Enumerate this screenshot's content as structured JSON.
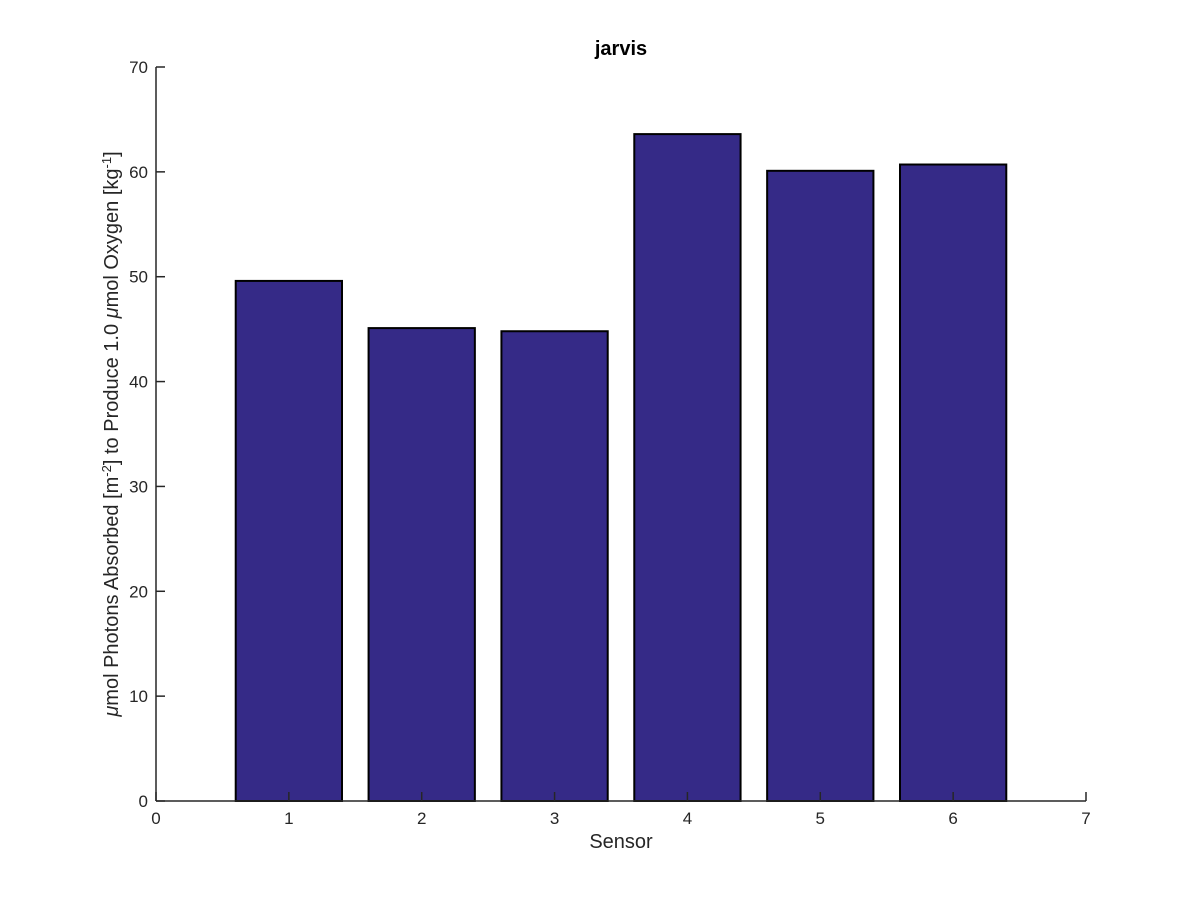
{
  "chart_data": {
    "type": "bar",
    "title": "jarvis",
    "xlabel": "Sensor",
    "ylabel": {
      "mu1": "μ",
      "part1": "mol Photons Absorbed [m",
      "sup1": "-2",
      "part2": "] to Produce 1.0 ",
      "mu2": "μ",
      "part3": "mol Oxygen [kg",
      "sup2": "-1",
      "part4": "]"
    },
    "x": [
      1,
      2,
      3,
      4,
      5,
      6
    ],
    "values": [
      49.6,
      45.1,
      44.8,
      63.6,
      60.1,
      60.7
    ],
    "xlim": [
      0,
      7
    ],
    "ylim": [
      0,
      70
    ],
    "xticks": [
      0,
      1,
      2,
      3,
      4,
      5,
      6,
      7
    ],
    "yticks": [
      0,
      10,
      20,
      30,
      40,
      50,
      60,
      70
    ],
    "bar_width": 0.8,
    "grid": false,
    "legend": "none",
    "colors": {
      "bar": "#352a87",
      "edge": "#000000",
      "axis": "#262626"
    }
  }
}
